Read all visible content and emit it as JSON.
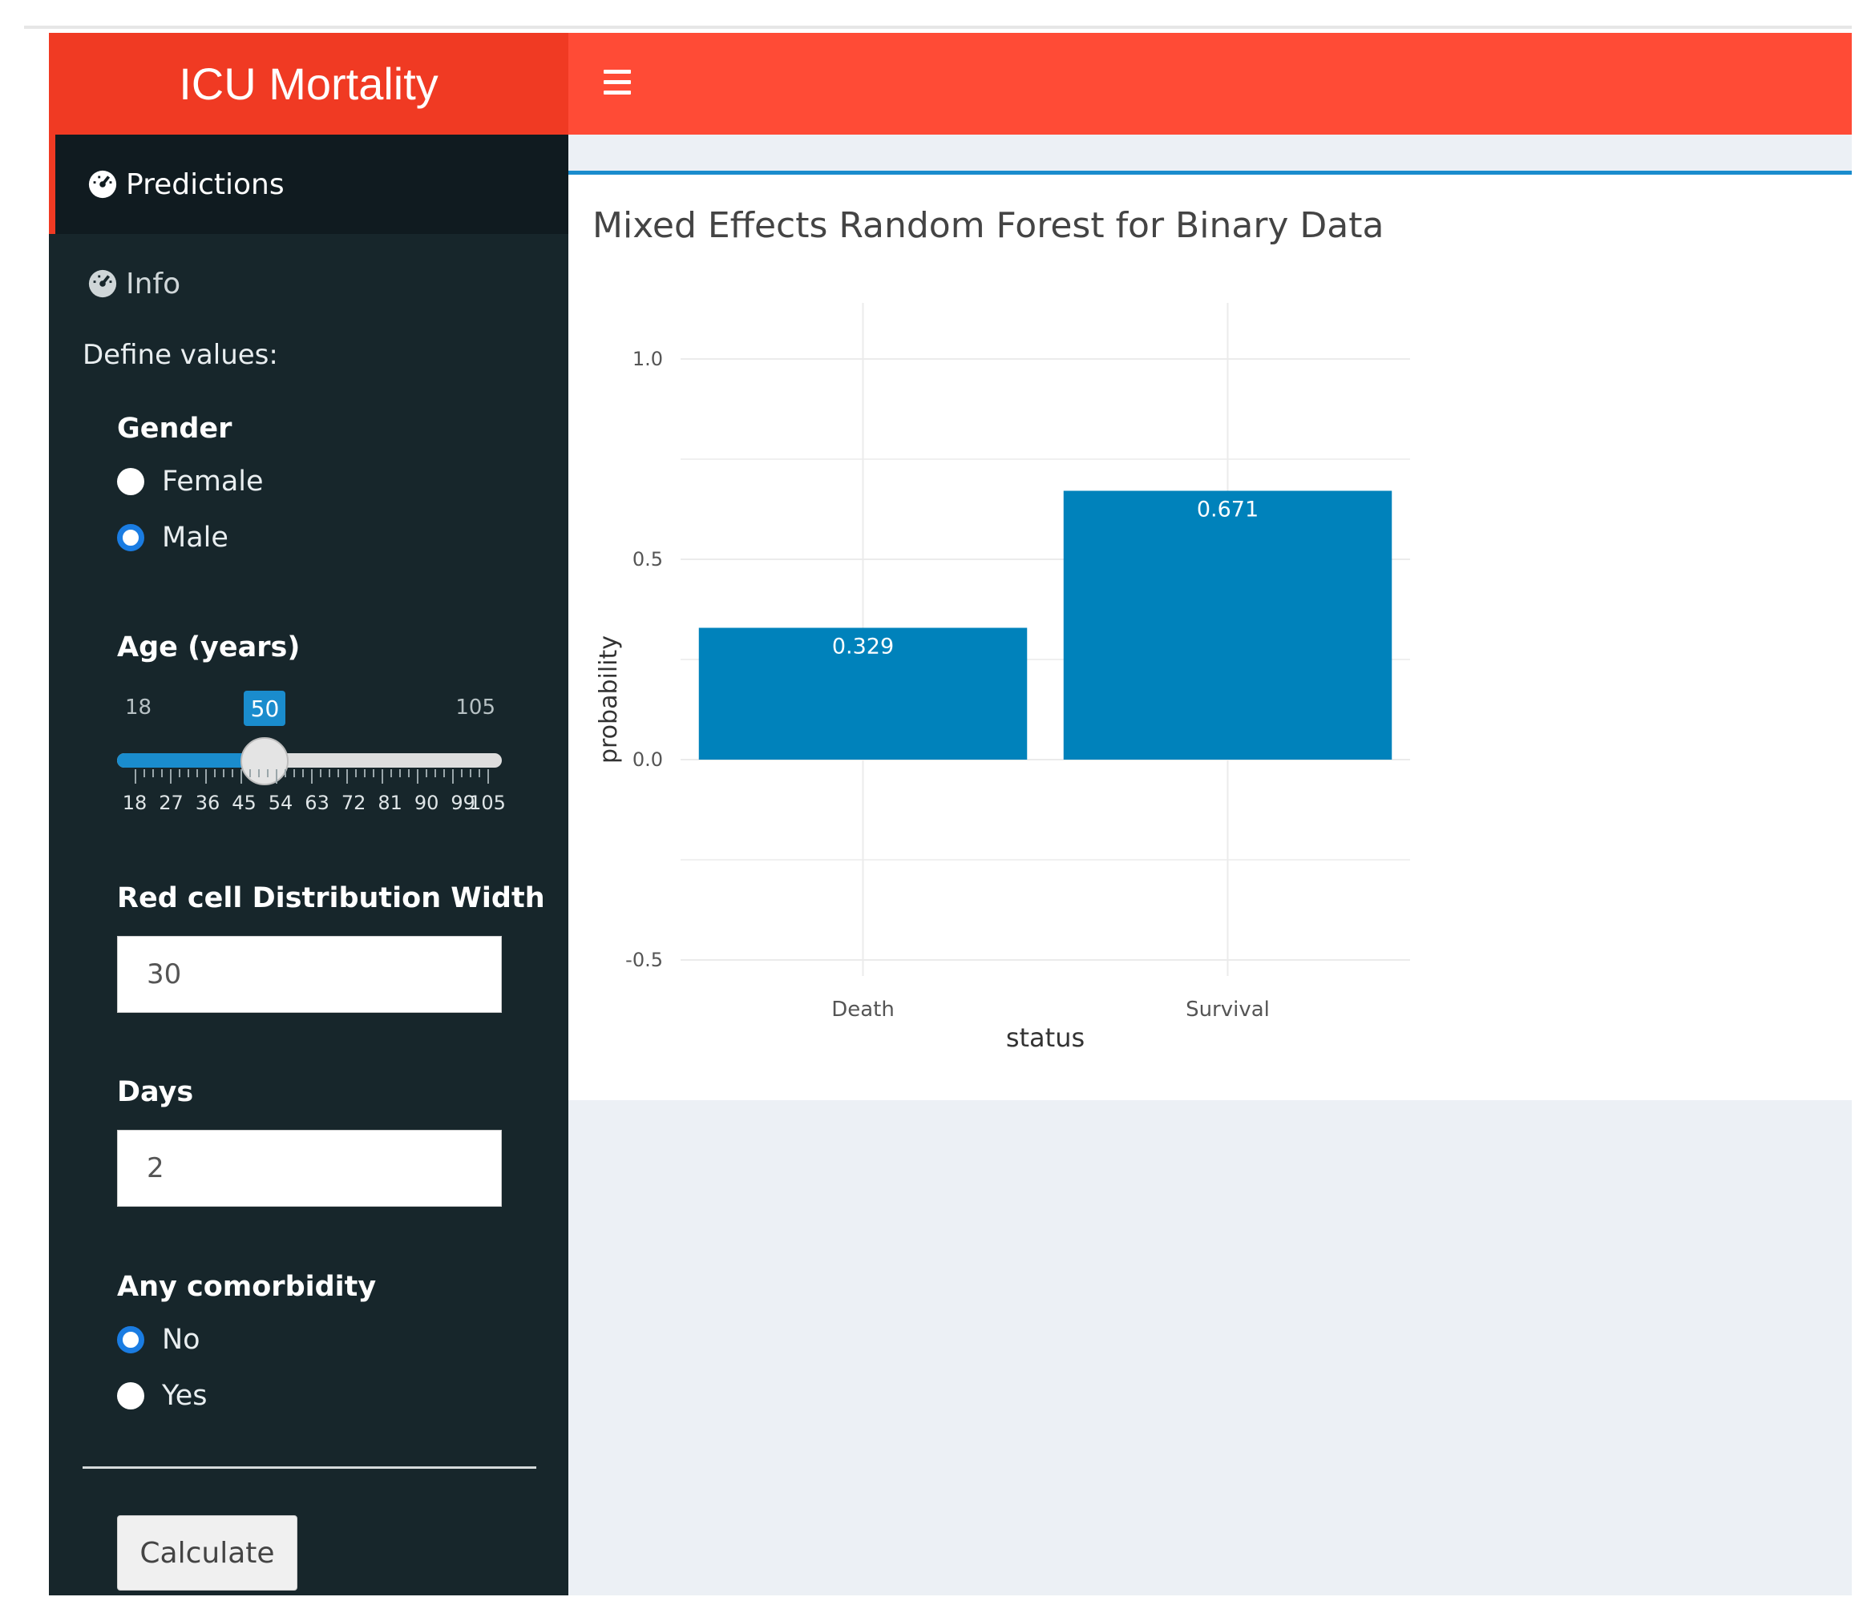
{
  "header": {
    "brand_title": "ICU Mortality"
  },
  "sidebar": {
    "menu": [
      {
        "label": "Predictions",
        "icon": "dashboard-icon",
        "active": true
      },
      {
        "label": "Info",
        "icon": "dashboard-icon",
        "active": false
      }
    ],
    "define_values_label": "Define values:",
    "gender": {
      "label": "Gender",
      "options": [
        "Female",
        "Male"
      ],
      "selected": "Male"
    },
    "age": {
      "label": "Age (years)",
      "min": 18,
      "max": 105,
      "value": 50,
      "min_label": "18",
      "max_label": "105",
      "value_label": "50",
      "tick_labels": [
        "18",
        "27",
        "36",
        "45",
        "54",
        "63",
        "72",
        "81",
        "90",
        "99",
        "105"
      ]
    },
    "rdw": {
      "label": "Red cell Distribution Width",
      "value": "30"
    },
    "days": {
      "label": "Days",
      "value": "2"
    },
    "comorbidity": {
      "label": "Any comorbidity",
      "options": [
        "No",
        "Yes"
      ],
      "selected": "No"
    },
    "calculate_label": "Calculate"
  },
  "main": {
    "box_title": "Mixed Effects Random Forest for Binary Data"
  },
  "colors": {
    "header_brand": "#f03a23",
    "header_nav": "#ff4b36",
    "sidebar_bg": "#17262b",
    "accent_blue": "#1a8ccd",
    "bar": "#0082bb"
  },
  "chart_data": {
    "type": "bar",
    "categories": [
      "Death",
      "Survival"
    ],
    "values": [
      0.329,
      0.671
    ],
    "data_labels": [
      "0.329",
      "0.671"
    ],
    "xlabel": "status",
    "ylabel": "probability",
    "ylim": [
      -0.5,
      1.0
    ],
    "y_ticks": [
      "1.0",
      "0.5",
      "0.0",
      "-0.5"
    ],
    "grid": true
  }
}
